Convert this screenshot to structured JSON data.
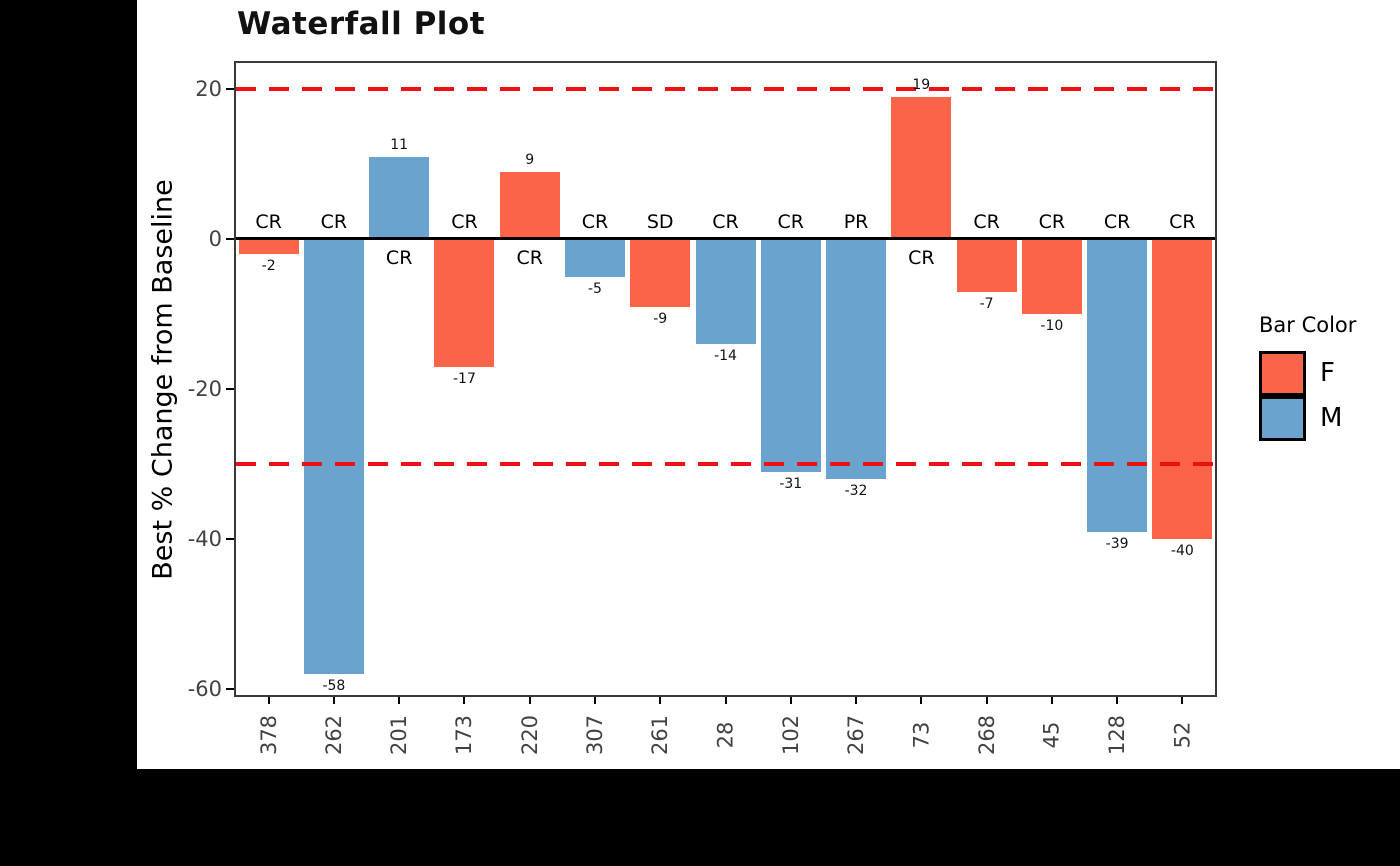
{
  "figure": {
    "title": "Waterfall Plot",
    "background_color": "#000000",
    "panel_color": "#ffffff"
  },
  "chart_data": {
    "type": "bar",
    "title": "Waterfall Plot",
    "xlabel": "",
    "ylabel": "Best % Change from Baseline",
    "categories": [
      "378",
      "262",
      "201",
      "173",
      "220",
      "307",
      "261",
      "28",
      "102",
      "267",
      "73",
      "268",
      "45",
      "128",
      "52"
    ],
    "values": [
      -2,
      -58,
      11,
      -17,
      9,
      -5,
      -9,
      -14,
      -31,
      -32,
      19,
      -7,
      -10,
      -39,
      -40
    ],
    "point_groups": [
      "F",
      "M",
      "M",
      "F",
      "F",
      "M",
      "F",
      "M",
      "M",
      "M",
      "F",
      "F",
      "F",
      "M",
      "F"
    ],
    "response_labels": [
      "CR",
      "CR",
      "CR",
      "CR",
      "CR",
      "CR",
      "SD",
      "CR",
      "CR",
      "PR",
      "CR",
      "CR",
      "CR",
      "CR",
      "CR"
    ],
    "y_ticks": [
      20,
      0,
      -20,
      -40,
      -60
    ],
    "ylim": [
      -61,
      23.5
    ],
    "grid": false,
    "reference_lines": [
      {
        "y": 20,
        "style": "dashed",
        "color": "#ee1111"
      },
      {
        "y": -30,
        "style": "dashed",
        "color": "#ee1111"
      }
    ],
    "zero_line_color": "#000000",
    "legend": {
      "title": "Bar Color",
      "position": "right",
      "entries": [
        {
          "label": "F",
          "color": "#fb6448"
        },
        {
          "label": "M",
          "color": "#6ba3cf"
        }
      ]
    },
    "colors": {
      "F": "#fb6448",
      "M": "#6ba3cf"
    }
  }
}
